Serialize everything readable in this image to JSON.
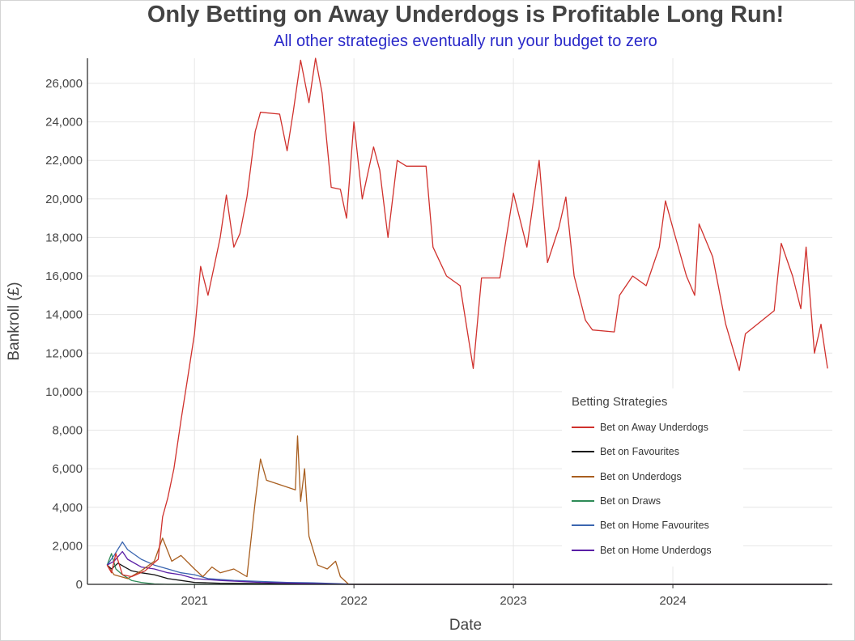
{
  "chart_data": {
    "type": "line",
    "title": "Only Betting on Away Underdogs is Profitable Long Run!",
    "subtitle": "All other strategies eventually run your budget to zero",
    "xlabel": "Date",
    "ylabel": "Bankroll (£)",
    "xlim": [
      "2020-05-01",
      "2024-12-31"
    ],
    "ylim": [
      0,
      27300
    ],
    "x_ticks": [
      "2021",
      "2022",
      "2023",
      "2024"
    ],
    "y_ticks": [
      "0",
      "2,000",
      "4,000",
      "6,000",
      "8,000",
      "10,000",
      "12,000",
      "14,000",
      "16,000",
      "18,000",
      "20,000",
      "22,000",
      "24,000",
      "26,000"
    ],
    "grid": true,
    "legend_position": "bottom-right",
    "legend_title": "Betting Strategies",
    "series": [
      {
        "name": "Bet on Away Underdogs",
        "color": "#d0312d",
        "points": [
          [
            "2020-06-15",
            1000
          ],
          [
            "2020-06-25",
            600
          ],
          [
            "2020-07-05",
            1600
          ],
          [
            "2020-07-20",
            500
          ],
          [
            "2020-08-10",
            400
          ],
          [
            "2020-09-10",
            700
          ],
          [
            "2020-10-10",
            1300
          ],
          [
            "2020-10-20",
            3500
          ],
          [
            "2020-11-01",
            4500
          ],
          [
            "2020-11-15",
            6000
          ],
          [
            "2020-12-01",
            8500
          ],
          [
            "2020-12-15",
            10500
          ],
          [
            "2021-01-01",
            13000
          ],
          [
            "2021-01-15",
            16500
          ],
          [
            "2021-02-01",
            15000
          ],
          [
            "2021-02-15",
            16500
          ],
          [
            "2021-03-01",
            18000
          ],
          [
            "2021-03-15",
            20200
          ],
          [
            "2021-04-01",
            17500
          ],
          [
            "2021-04-15",
            18200
          ],
          [
            "2021-05-01",
            20100
          ],
          [
            "2021-05-20",
            23500
          ],
          [
            "2021-06-01",
            24500
          ],
          [
            "2021-07-15",
            24400
          ],
          [
            "2021-08-01",
            22500
          ],
          [
            "2021-08-15",
            24500
          ],
          [
            "2021-09-01",
            27200
          ],
          [
            "2021-09-20",
            25000
          ],
          [
            "2021-10-05",
            27300
          ],
          [
            "2021-10-20",
            25500
          ],
          [
            "2021-11-10",
            20600
          ],
          [
            "2021-12-01",
            20500
          ],
          [
            "2021-12-15",
            19000
          ],
          [
            "2022-01-01",
            24000
          ],
          [
            "2022-01-20",
            20000
          ],
          [
            "2022-02-15",
            22700
          ],
          [
            "2022-03-01",
            21500
          ],
          [
            "2022-03-20",
            18000
          ],
          [
            "2022-04-10",
            22000
          ],
          [
            "2022-05-01",
            21700
          ],
          [
            "2022-06-15",
            21700
          ],
          [
            "2022-07-01",
            17500
          ],
          [
            "2022-08-01",
            16000
          ],
          [
            "2022-09-01",
            15500
          ],
          [
            "2022-10-01",
            11200
          ],
          [
            "2022-10-20",
            15900
          ],
          [
            "2022-12-01",
            15900
          ],
          [
            "2023-01-01",
            20300
          ],
          [
            "2023-02-01",
            17500
          ],
          [
            "2023-03-01",
            22000
          ],
          [
            "2023-03-20",
            16700
          ],
          [
            "2023-04-15",
            18500
          ],
          [
            "2023-05-01",
            20100
          ],
          [
            "2023-05-20",
            16000
          ],
          [
            "2023-06-15",
            13700
          ],
          [
            "2023-07-01",
            13200
          ],
          [
            "2023-08-20",
            13100
          ],
          [
            "2023-09-01",
            15000
          ],
          [
            "2023-10-01",
            16000
          ],
          [
            "2023-11-01",
            15500
          ],
          [
            "2023-12-01",
            17500
          ],
          [
            "2023-12-15",
            19900
          ],
          [
            "2024-01-01",
            18500
          ],
          [
            "2024-02-01",
            16000
          ],
          [
            "2024-02-20",
            15000
          ],
          [
            "2024-03-01",
            18700
          ],
          [
            "2024-04-01",
            17000
          ],
          [
            "2024-05-01",
            13500
          ],
          [
            "2024-06-01",
            11100
          ],
          [
            "2024-06-15",
            13000
          ],
          [
            "2024-08-20",
            14200
          ],
          [
            "2024-09-05",
            17700
          ],
          [
            "2024-10-01",
            16000
          ],
          [
            "2024-10-20",
            14300
          ],
          [
            "2024-11-01",
            17500
          ],
          [
            "2024-11-20",
            12000
          ],
          [
            "2024-12-05",
            13500
          ],
          [
            "2024-12-20",
            11200
          ]
        ]
      },
      {
        "name": "Bet on Favourites",
        "color": "#111111",
        "points": [
          [
            "2020-06-15",
            1000
          ],
          [
            "2020-06-25",
            800
          ],
          [
            "2020-07-10",
            1100
          ],
          [
            "2020-07-25",
            900
          ],
          [
            "2020-08-10",
            700
          ],
          [
            "2020-09-01",
            600
          ],
          [
            "2020-10-01",
            500
          ],
          [
            "2020-11-01",
            300
          ],
          [
            "2020-12-01",
            200
          ],
          [
            "2021-01-01",
            100
          ],
          [
            "2021-03-01",
            60
          ],
          [
            "2021-06-01",
            40
          ],
          [
            "2021-09-01",
            20
          ],
          [
            "2021-12-01",
            5
          ],
          [
            "2024-12-20",
            0
          ]
        ]
      },
      {
        "name": "Bet on Underdogs",
        "color": "#a85e1f",
        "points": [
          [
            "2020-06-15",
            1000
          ],
          [
            "2020-07-01",
            500
          ],
          [
            "2020-08-01",
            300
          ],
          [
            "2020-09-01",
            700
          ],
          [
            "2020-10-01",
            1200
          ],
          [
            "2020-10-20",
            2400
          ],
          [
            "2020-11-10",
            1200
          ],
          [
            "2020-12-01",
            1500
          ],
          [
            "2021-01-01",
            800
          ],
          [
            "2021-01-20",
            400
          ],
          [
            "2021-02-10",
            900
          ],
          [
            "2021-03-01",
            600
          ],
          [
            "2021-04-01",
            800
          ],
          [
            "2021-05-01",
            400
          ],
          [
            "2021-05-20",
            4300
          ],
          [
            "2021-06-01",
            6500
          ],
          [
            "2021-06-15",
            5400
          ],
          [
            "2021-08-20",
            4900
          ],
          [
            "2021-08-25",
            7700
          ],
          [
            "2021-09-01",
            4300
          ],
          [
            "2021-09-10",
            6000
          ],
          [
            "2021-09-20",
            2500
          ],
          [
            "2021-10-10",
            1000
          ],
          [
            "2021-11-01",
            800
          ],
          [
            "2021-11-20",
            1200
          ],
          [
            "2021-12-01",
            400
          ],
          [
            "2021-12-20",
            0
          ],
          [
            "2024-12-20",
            0
          ]
        ]
      },
      {
        "name": "Bet on Draws",
        "color": "#2e8b57",
        "points": [
          [
            "2020-06-15",
            1000
          ],
          [
            "2020-06-25",
            1600
          ],
          [
            "2020-07-05",
            800
          ],
          [
            "2020-07-20",
            500
          ],
          [
            "2020-08-10",
            200
          ],
          [
            "2020-09-01",
            100
          ],
          [
            "2020-10-01",
            20
          ],
          [
            "2020-11-01",
            0
          ],
          [
            "2024-12-20",
            0
          ]
        ]
      },
      {
        "name": "Bet on Home Favourites",
        "color": "#3b66b0",
        "points": [
          [
            "2020-06-15",
            1000
          ],
          [
            "2020-07-01",
            1500
          ],
          [
            "2020-07-20",
            2200
          ],
          [
            "2020-08-01",
            1800
          ],
          [
            "2020-09-01",
            1300
          ],
          [
            "2020-10-01",
            1000
          ],
          [
            "2020-11-01",
            800
          ],
          [
            "2020-12-01",
            600
          ],
          [
            "2021-01-01",
            500
          ],
          [
            "2021-02-01",
            300
          ],
          [
            "2021-04-01",
            200
          ],
          [
            "2021-06-01",
            150
          ],
          [
            "2021-08-01",
            100
          ],
          [
            "2021-10-01",
            80
          ],
          [
            "2021-12-01",
            30
          ],
          [
            "2022-01-01",
            0
          ],
          [
            "2024-12-20",
            0
          ]
        ]
      },
      {
        "name": "Bet on Home Underdogs",
        "color": "#5a1fa6",
        "points": [
          [
            "2020-06-15",
            1000
          ],
          [
            "2020-07-01",
            1200
          ],
          [
            "2020-07-20",
            1700
          ],
          [
            "2020-08-01",
            1300
          ],
          [
            "2020-09-01",
            900
          ],
          [
            "2020-10-01",
            800
          ],
          [
            "2020-11-01",
            600
          ],
          [
            "2020-12-01",
            500
          ],
          [
            "2021-01-01",
            300
          ],
          [
            "2021-03-01",
            200
          ],
          [
            "2021-06-01",
            100
          ],
          [
            "2021-09-01",
            50
          ],
          [
            "2021-12-01",
            10
          ],
          [
            "2022-01-01",
            0
          ],
          [
            "2024-12-20",
            0
          ]
        ]
      }
    ]
  }
}
